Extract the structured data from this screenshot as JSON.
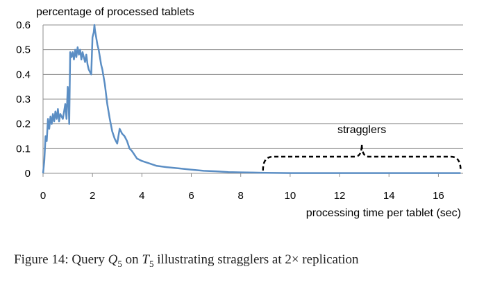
{
  "chart_data": {
    "type": "line",
    "title": "",
    "ylabel": "percentage of processed tablets",
    "xlabel": "processing time per tablet (sec)",
    "xlim": [
      0,
      17
    ],
    "ylim": [
      0,
      0.6
    ],
    "x_ticks": [
      0,
      2,
      4,
      6,
      8,
      10,
      12,
      14,
      16
    ],
    "y_ticks": [
      0,
      0.1,
      0.2,
      0.3,
      0.4,
      0.5,
      0.6
    ],
    "x_tick_labels": [
      "0",
      "2",
      "4",
      "6",
      "8",
      "10",
      "12",
      "14",
      "16"
    ],
    "y_tick_labels": [
      "0",
      "0.1",
      "0.2",
      "0.3",
      "0.4",
      "0.5",
      "0.6"
    ],
    "grid": "horizontal",
    "line_color": "#5b8ec4",
    "annotation": {
      "text": "stragglers",
      "x_range": [
        8.9,
        16.9
      ]
    },
    "series": [
      {
        "x": [
          0,
          0.05,
          0.1,
          0.15,
          0.2,
          0.25,
          0.3,
          0.35,
          0.4,
          0.45,
          0.5,
          0.55,
          0.6,
          0.65,
          0.7,
          0.75,
          0.8,
          0.85,
          0.9,
          0.95,
          1.0,
          1.03,
          1.06,
          1.1,
          1.15,
          1.2,
          1.25,
          1.3,
          1.35,
          1.4,
          1.45,
          1.5,
          1.55,
          1.6,
          1.65,
          1.7,
          1.75,
          1.8,
          1.85,
          1.9,
          1.95,
          2.0,
          2.05,
          2.08,
          2.1,
          2.15,
          2.2,
          2.25,
          2.3,
          2.35,
          2.4,
          2.5,
          2.6,
          2.7,
          2.8,
          2.9,
          3.0,
          3.1,
          3.2,
          3.3,
          3.4,
          3.5,
          3.6,
          3.8,
          4.0,
          4.3,
          4.6,
          5.0,
          5.5,
          6.0,
          6.5,
          7.0,
          7.5,
          8.0,
          8.5,
          9.0,
          10.0,
          11.0,
          12.0,
          13.0,
          14.0,
          15.0,
          16.0,
          16.9
        ],
        "y": [
          0,
          0.05,
          0.15,
          0.13,
          0.22,
          0.18,
          0.23,
          0.2,
          0.24,
          0.21,
          0.25,
          0.22,
          0.26,
          0.21,
          0.24,
          0.23,
          0.22,
          0.25,
          0.28,
          0.22,
          0.35,
          0.3,
          0.2,
          0.49,
          0.47,
          0.49,
          0.46,
          0.5,
          0.47,
          0.51,
          0.48,
          0.5,
          0.46,
          0.49,
          0.47,
          0.45,
          0.48,
          0.44,
          0.42,
          0.41,
          0.4,
          0.55,
          0.57,
          0.6,
          0.58,
          0.55,
          0.52,
          0.5,
          0.47,
          0.44,
          0.42,
          0.36,
          0.28,
          0.22,
          0.17,
          0.14,
          0.12,
          0.18,
          0.16,
          0.15,
          0.13,
          0.1,
          0.09,
          0.06,
          0.05,
          0.04,
          0.03,
          0.025,
          0.02,
          0.015,
          0.01,
          0.008,
          0.005,
          0.004,
          0.003,
          0.002,
          0.001,
          0.001,
          0.001,
          0.001,
          0.001,
          0.001,
          0.001,
          0.001
        ]
      }
    ]
  },
  "caption": {
    "prefix": "Figure 14: Query ",
    "q": "Q",
    "q_sub": "5",
    "on": " on ",
    "t": "T",
    "t_sub": "5",
    "suffix": " illustrating stragglers at 2× replication"
  }
}
